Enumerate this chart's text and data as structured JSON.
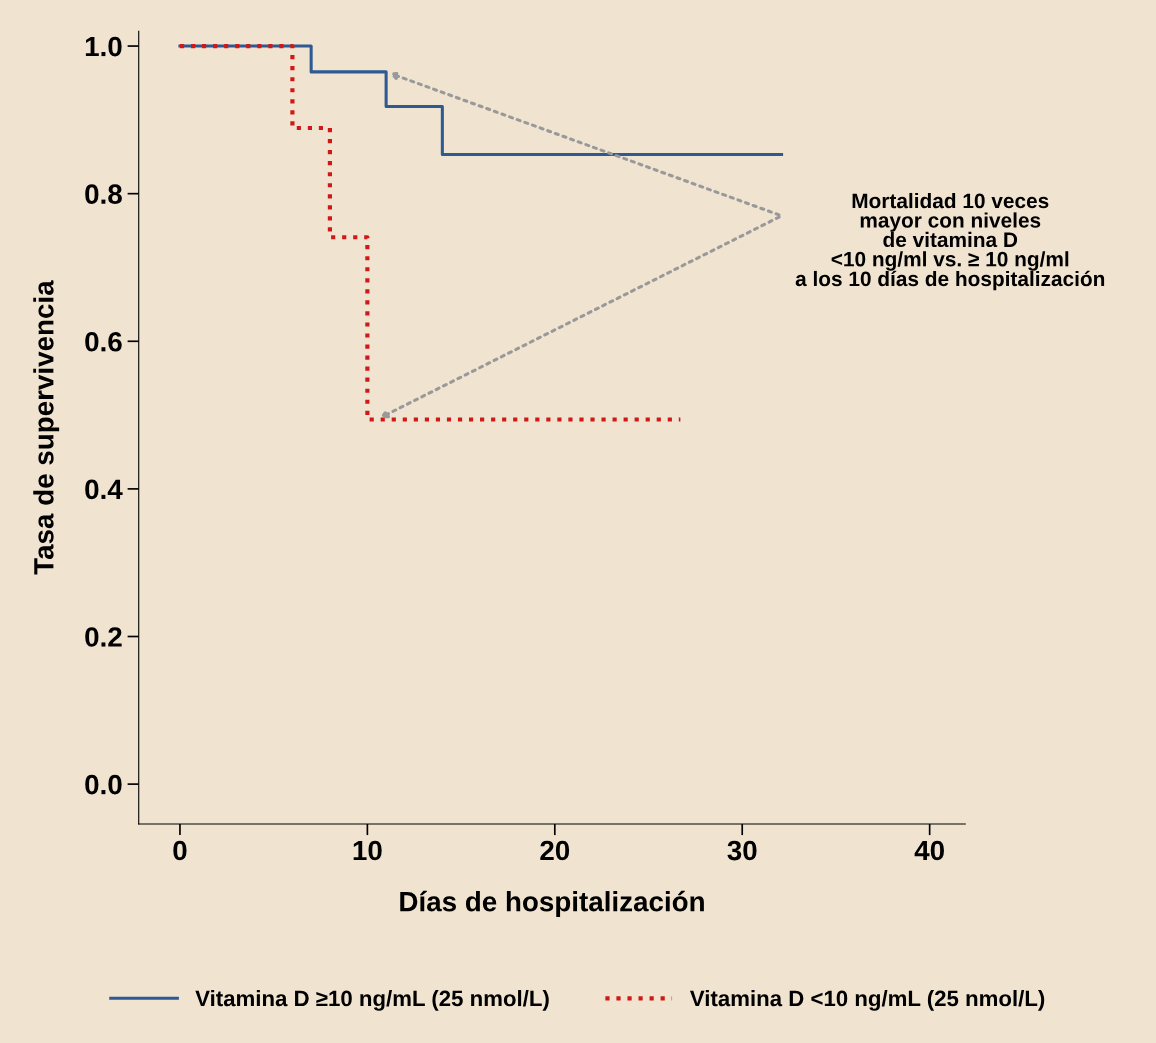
{
  "chart_data": {
    "type": "step",
    "xlabel": "Días de hospitalización",
    "ylabel": "Tasa de supervivencia",
    "series": [
      {
        "name": "Vitamina D ≥10 ng/mL (25 nmol/L)",
        "color": "#2e5a94",
        "line_style": "solid",
        "x": [
          0,
          7,
          11,
          14,
          32.1
        ],
        "values": [
          1.0,
          0.965,
          0.918,
          0.853,
          0.853
        ]
      },
      {
        "name": "Vitamina D <10 ng/mL (25 nmol/L)",
        "color": "#d01818",
        "line_style": "dotted",
        "x": [
          0,
          6,
          8,
          10,
          26.7
        ],
        "values": [
          1.0,
          0.889,
          0.741,
          0.494,
          0.494
        ]
      }
    ],
    "xlim": [
      -2.2,
      41.9
    ],
    "ylim": [
      -0.054,
      1.02
    ],
    "xticks": [
      0,
      10,
      20,
      30,
      40
    ],
    "yticks": [
      {
        "value": 0,
        "label": "0.0"
      },
      {
        "value": 0.2,
        "label": "0.2"
      },
      {
        "value": 0.4,
        "label": "0.4"
      },
      {
        "value": 0.6,
        "label": "0.6"
      },
      {
        "value": 0.8,
        "label": "0.8"
      },
      {
        "value": 1.0,
        "label": "1.0"
      }
    ],
    "annotations": [
      "Mortalidad 10 veces\nmayor con niveles\nde vitamina D\n<10 ng/ml vs. ≥ 10 ng/ml\na los 10 días de hospitalización"
    ],
    "grid": false,
    "legend": "bottom",
    "marker": "none"
  }
}
